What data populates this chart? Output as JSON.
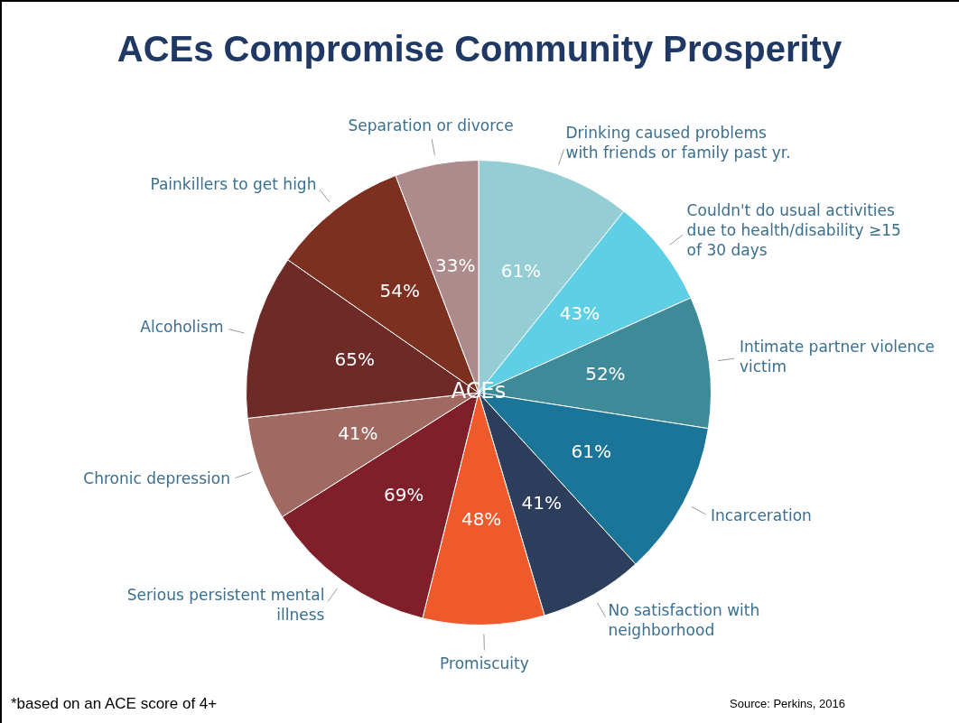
{
  "chart_data": {
    "type": "pie",
    "title": "ACEs Compromise Community Prosperity",
    "categories": [
      "Drinking caused problems with friends or family past yr.",
      "Couldn't do usual activities due to health/disability ≥15 of 30 days",
      "Intimate partner violence victim",
      "Incarceration",
      "No satisfaction with neighborhood",
      "Promiscuity",
      "Serious persistent mental illness",
      "Chronic depression",
      "Alcoholism",
      "Painkillers to get high",
      "Separation or divorce"
    ],
    "values": [
      61,
      43,
      52,
      61,
      41,
      48,
      69,
      41,
      65,
      54,
      33
    ],
    "value_labels": [
      "61%",
      "43%",
      "52%",
      "61%",
      "41%",
      "48%",
      "69%",
      "41%",
      "65%",
      "54%",
      "33%"
    ],
    "colors": [
      "#94cdd3",
      "#5ecfe4",
      "#3f8a99",
      "#1a7599",
      "#2c3e5c",
      "#ee5a2c",
      "#7f1f2a",
      "#a06a62",
      "#6e2a26",
      "#7e3020",
      "#ad8a8c"
    ],
    "annotations": [
      "ACEs",
      "*based on an ACE score of 4+",
      "Source: Perkins, 2016"
    ],
    "legend": false
  }
}
